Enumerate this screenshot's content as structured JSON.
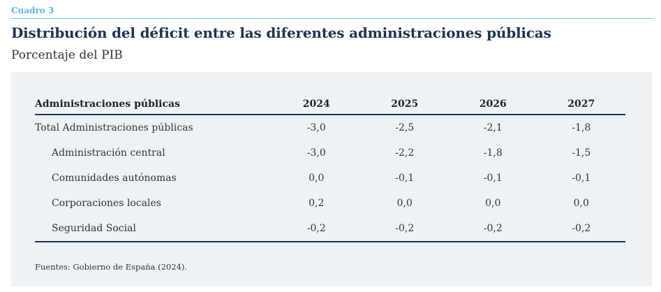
{
  "label": "Cuadro 3",
  "title": "Distribución del déficit entre las diferentes administraciones públicas",
  "subtitle": "Porcentaje del PIB",
  "table": {
    "headers": [
      "Administraciones públicas",
      "2024",
      "2025",
      "2026",
      "2027"
    ],
    "rows": [
      {
        "label": "Total Administraciones públicas",
        "values": [
          "-3,0",
          "-2,5",
          "-2,1",
          "-1,8"
        ]
      },
      {
        "label": "Administración central",
        "values": [
          "-3,0",
          "-2,2",
          "-1,8",
          "-1,5"
        ]
      },
      {
        "label": "Comunidades autónomas",
        "values": [
          "0,0",
          "-0,1",
          "-0,1",
          "-0,1"
        ]
      },
      {
        "label": "Corporaciones locales",
        "values": [
          "0,2",
          "0,0",
          "0,0",
          "0,0"
        ]
      },
      {
        "label": "Seguridad Social",
        "values": [
          "-0,2",
          "-0,2",
          "-0,2",
          "-0,2"
        ]
      }
    ]
  },
  "source": "Fuentes: Gobierno de España (2024).",
  "colors": {
    "accent": "#5ab4dc",
    "title": "#1f3350",
    "panel": "#eef2f5"
  }
}
